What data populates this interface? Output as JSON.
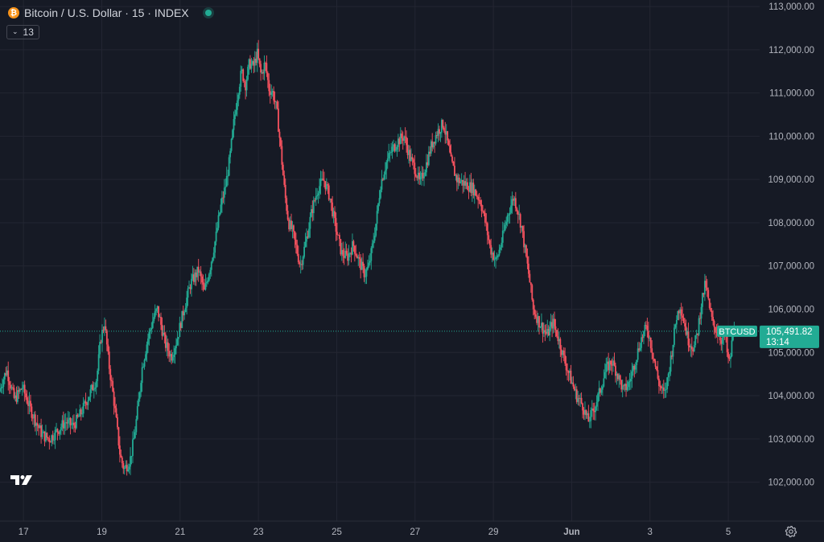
{
  "header": {
    "coin_icon_glyph": "₿",
    "coin_icon": "bitcoin-icon",
    "symbol_title": "Bitcoin / U.S. Dollar · 15 · INDEX",
    "market_status": "open"
  },
  "indicators": {
    "chevron": "chevron-down-icon",
    "count": "13"
  },
  "price_label": {
    "symbol": "BTCUSD",
    "price": "105,491.82",
    "countdown": "13:14"
  },
  "colors": {
    "background": "#161a25",
    "up": "#22ab94",
    "down": "#f7525f",
    "grid": "#232632",
    "text": "#d1d4dc",
    "price_tag": "#22ab94"
  },
  "chart_data": {
    "type": "candlestick",
    "title": "Bitcoin / U.S. Dollar · 15 · INDEX",
    "timeframe": "15",
    "ylim": [
      101100,
      113150
    ],
    "y_ticks": [
      "102,000.00",
      "103,000.00",
      "104,000.00",
      "105,000.00",
      "106,000.00",
      "107,000.00",
      "108,000.00",
      "109,000.00",
      "110,000.00",
      "111,000.00",
      "112,000.00",
      "113,000.00"
    ],
    "y_tick_values": [
      102000,
      103000,
      104000,
      105000,
      106000,
      107000,
      108000,
      109000,
      110000,
      111000,
      112000,
      113000
    ],
    "x_ticks": [
      "17",
      "19",
      "21",
      "23",
      "25",
      "27",
      "29",
      "Jun",
      "3",
      "5"
    ],
    "x_tick_days": [
      17,
      19,
      21,
      23,
      25,
      27,
      29,
      31,
      33,
      35
    ],
    "x_domain_days": [
      16.4,
      35.8
    ],
    "last_price": 105491.82,
    "grid": true,
    "price_path": [
      [
        16.4,
        104100
      ],
      [
        16.6,
        104600
      ],
      [
        16.8,
        103900
      ],
      [
        17.0,
        104200
      ],
      [
        17.2,
        103700
      ],
      [
        17.5,
        103100
      ],
      [
        17.7,
        103000
      ],
      [
        17.9,
        103200
      ],
      [
        18.1,
        103400
      ],
      [
        18.3,
        103300
      ],
      [
        18.5,
        103600
      ],
      [
        18.7,
        104000
      ],
      [
        18.9,
        104400
      ],
      [
        19.0,
        105300
      ],
      [
        19.1,
        105700
      ],
      [
        19.2,
        104800
      ],
      [
        19.35,
        103800
      ],
      [
        19.5,
        102600
      ],
      [
        19.6,
        102300
      ],
      [
        19.75,
        102500
      ],
      [
        19.85,
        103000
      ],
      [
        19.95,
        103700
      ],
      [
        20.05,
        104600
      ],
      [
        20.2,
        105300
      ],
      [
        20.35,
        105800
      ],
      [
        20.45,
        106000
      ],
      [
        20.55,
        105600
      ],
      [
        20.65,
        105200
      ],
      [
        20.8,
        104900
      ],
      [
        20.95,
        105300
      ],
      [
        21.1,
        105900
      ],
      [
        21.3,
        106600
      ],
      [
        21.5,
        106900
      ],
      [
        21.65,
        106400
      ],
      [
        21.8,
        107000
      ],
      [
        21.95,
        107700
      ],
      [
        22.05,
        108300
      ],
      [
        22.2,
        108900
      ],
      [
        22.3,
        109500
      ],
      [
        22.4,
        110300
      ],
      [
        22.5,
        111000
      ],
      [
        22.6,
        111500
      ],
      [
        22.7,
        111200
      ],
      [
        22.8,
        111700
      ],
      [
        22.9,
        111600
      ],
      [
        23.0,
        111900
      ],
      [
        23.1,
        111400
      ],
      [
        23.2,
        111700
      ],
      [
        23.3,
        111100
      ],
      [
        23.4,
        111000
      ],
      [
        23.5,
        110600
      ],
      [
        23.6,
        109700
      ],
      [
        23.7,
        108700
      ],
      [
        23.8,
        108000
      ],
      [
        23.9,
        107800
      ],
      [
        24.0,
        107400
      ],
      [
        24.1,
        107000
      ],
      [
        24.25,
        107600
      ],
      [
        24.4,
        108300
      ],
      [
        24.55,
        108800
      ],
      [
        24.7,
        109000
      ],
      [
        24.85,
        108600
      ],
      [
        25.0,
        107900
      ],
      [
        25.15,
        107300
      ],
      [
        25.3,
        107200
      ],
      [
        25.45,
        107500
      ],
      [
        25.6,
        107100
      ],
      [
        25.75,
        106800
      ],
      [
        25.85,
        107000
      ],
      [
        25.95,
        107500
      ],
      [
        26.05,
        108100
      ],
      [
        26.15,
        108900
      ],
      [
        26.3,
        109400
      ],
      [
        26.45,
        109700
      ],
      [
        26.6,
        109900
      ],
      [
        26.75,
        110000
      ],
      [
        26.9,
        109500
      ],
      [
        27.05,
        109200
      ],
      [
        27.15,
        108900
      ],
      [
        27.3,
        109300
      ],
      [
        27.45,
        109800
      ],
      [
        27.6,
        110100
      ],
      [
        27.75,
        110300
      ],
      [
        27.85,
        109900
      ],
      [
        27.95,
        109400
      ],
      [
        28.1,
        109000
      ],
      [
        28.3,
        108900
      ],
      [
        28.5,
        108800
      ],
      [
        28.7,
        108500
      ],
      [
        28.85,
        107900
      ],
      [
        28.95,
        107400
      ],
      [
        29.1,
        107100
      ],
      [
        29.25,
        107600
      ],
      [
        29.4,
        108200
      ],
      [
        29.55,
        108600
      ],
      [
        29.65,
        108300
      ],
      [
        29.75,
        107900
      ],
      [
        29.85,
        107300
      ],
      [
        29.95,
        106700
      ],
      [
        30.05,
        106000
      ],
      [
        30.2,
        105700
      ],
      [
        30.4,
        105400
      ],
      [
        30.55,
        105700
      ],
      [
        30.7,
        105300
      ],
      [
        30.85,
        104800
      ],
      [
        31.0,
        104400
      ],
      [
        31.15,
        104000
      ],
      [
        31.3,
        103800
      ],
      [
        31.45,
        103400
      ],
      [
        31.6,
        103700
      ],
      [
        31.75,
        104100
      ],
      [
        31.9,
        104600
      ],
      [
        32.05,
        104800
      ],
      [
        32.2,
        104500
      ],
      [
        32.35,
        104100
      ],
      [
        32.5,
        104300
      ],
      [
        32.65,
        104800
      ],
      [
        32.8,
        105300
      ],
      [
        32.95,
        105600
      ],
      [
        33.1,
        105000
      ],
      [
        33.25,
        104300
      ],
      [
        33.4,
        104000
      ],
      [
        33.5,
        104500
      ],
      [
        33.6,
        105100
      ],
      [
        33.7,
        105800
      ],
      [
        33.8,
        106100
      ],
      [
        33.9,
        105700
      ],
      [
        34.0,
        105300
      ],
      [
        34.15,
        105100
      ],
      [
        34.25,
        105500
      ],
      [
        34.35,
        106200
      ],
      [
        34.45,
        106600
      ],
      [
        34.55,
        106000
      ],
      [
        34.65,
        105600
      ],
      [
        34.75,
        105500
      ],
      [
        34.85,
        105300
      ],
      [
        34.95,
        105400
      ],
      [
        35.0,
        105000
      ],
      [
        35.05,
        104700
      ],
      [
        35.1,
        105000
      ],
      [
        35.15,
        105491.82
      ]
    ]
  }
}
